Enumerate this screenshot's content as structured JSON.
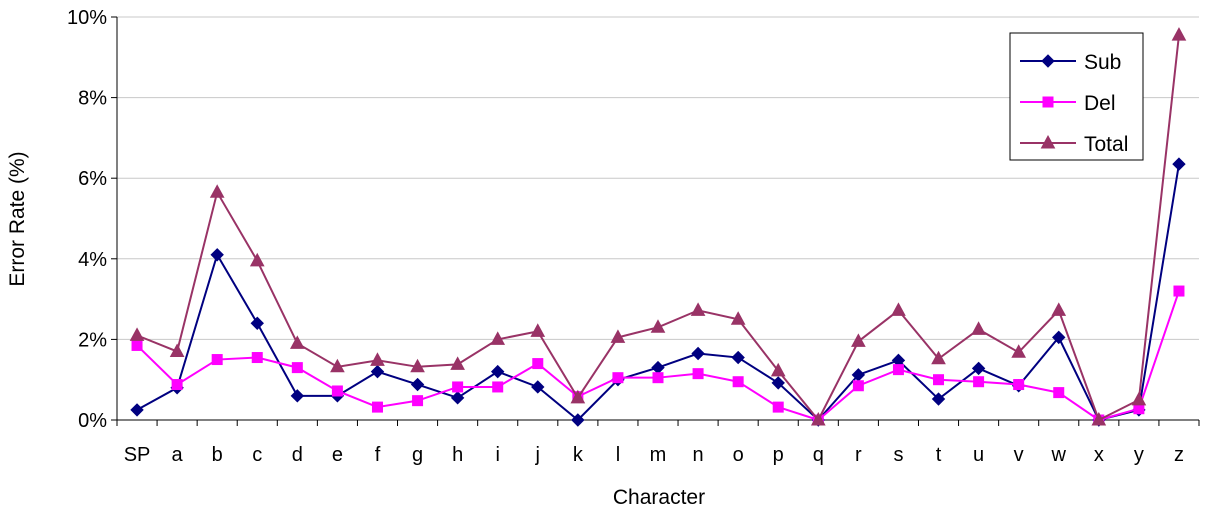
{
  "chart_data": {
    "type": "line",
    "xlabel": "Character",
    "ylabel": "Error Rate (%)",
    "ylim": [
      0,
      10
    ],
    "yticks": [
      "0%",
      "2%",
      "4%",
      "6%",
      "8%",
      "10%"
    ],
    "grid": "horizontal",
    "legend_position": "top-right",
    "categories": [
      "SP",
      "a",
      "b",
      "c",
      "d",
      "e",
      "f",
      "g",
      "h",
      "i",
      "j",
      "k",
      "l",
      "m",
      "n",
      "o",
      "p",
      "q",
      "r",
      "s",
      "t",
      "u",
      "v",
      "w",
      "x",
      "y",
      "z"
    ],
    "series": [
      {
        "name": "Sub",
        "color": "#000080",
        "marker": "diamond",
        "values": [
          0.25,
          0.8,
          4.1,
          2.4,
          0.6,
          0.6,
          1.2,
          0.88,
          0.55,
          1.2,
          0.82,
          0.0,
          1.0,
          1.3,
          1.65,
          1.55,
          0.92,
          0.0,
          1.12,
          1.48,
          0.52,
          1.28,
          0.85,
          2.05,
          0.0,
          0.25,
          6.35
        ]
      },
      {
        "name": "Del",
        "color": "#ff00ff",
        "marker": "square",
        "values": [
          1.85,
          0.88,
          1.5,
          1.55,
          1.3,
          0.72,
          0.32,
          0.48,
          0.82,
          0.82,
          1.4,
          0.58,
          1.05,
          1.05,
          1.15,
          0.95,
          0.32,
          0.0,
          0.85,
          1.25,
          1.0,
          0.95,
          0.88,
          0.68,
          0.0,
          0.28,
          3.2
        ]
      },
      {
        "name": "Total",
        "color": "#993366",
        "marker": "triangle",
        "values": [
          2.1,
          1.7,
          5.65,
          3.95,
          1.9,
          1.32,
          1.48,
          1.32,
          1.38,
          2.0,
          2.2,
          0.55,
          2.05,
          2.3,
          2.72,
          2.5,
          1.22,
          0.0,
          1.95,
          2.72,
          1.52,
          2.25,
          1.68,
          2.72,
          0.0,
          0.5,
          9.55
        ]
      }
    ]
  }
}
